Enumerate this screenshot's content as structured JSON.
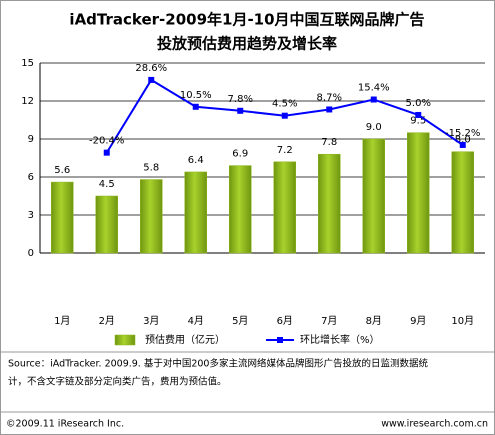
{
  "chart_data": {
    "type": "bar",
    "title": [
      "iAdTracker-2009年1月-10月中国互联网品牌广告",
      "投放预估费用趋势及增长率"
    ],
    "categories": [
      "1月",
      "2月",
      "3月",
      "4月",
      "5月",
      "6月",
      "7月",
      "8月",
      "9月",
      "10月"
    ],
    "ylim": [
      0,
      15
    ],
    "yticks": [
      0,
      3,
      6,
      9,
      12,
      15
    ],
    "grid": true,
    "y2lim": [
      -88,
      40
    ],
    "series": [
      {
        "name": "预估费用（亿元）",
        "type": "bar",
        "color": "#8cb61a",
        "values": [
          5.6,
          4.5,
          5.8,
          6.4,
          6.9,
          7.2,
          7.8,
          9.0,
          9.5,
          8.0
        ],
        "value_labels": [
          "5.6",
          "4.5",
          "5.8",
          "6.4",
          "6.9",
          "7.2",
          "7.8",
          "9.0",
          "9.5",
          "8.0"
        ]
      },
      {
        "name": "环比增长率（%）",
        "type": "line",
        "axis": "y2",
        "color": "#0000ff",
        "values": [
          null,
          -20.4,
          28.6,
          10.5,
          7.8,
          4.5,
          8.7,
          15.4,
          5.0,
          -15.2
        ],
        "value_labels": [
          null,
          "-20.4%",
          "28.6%",
          "10.5%",
          "7.8%",
          "4.5%",
          "8.7%",
          "15.4%",
          "5.0%",
          "-15.2%"
        ]
      }
    ]
  },
  "source": [
    "Source：iAdTracker. 2009.9. 基于对中国200多家主流网络媒体品牌图形广告投放的日监测数据统",
    "计，不含文字链及部分定向类广告，费用为预估值。"
  ],
  "footer": [
    "©2009.11 iResearch Inc.",
    "www.iresearch.com.cn"
  ]
}
